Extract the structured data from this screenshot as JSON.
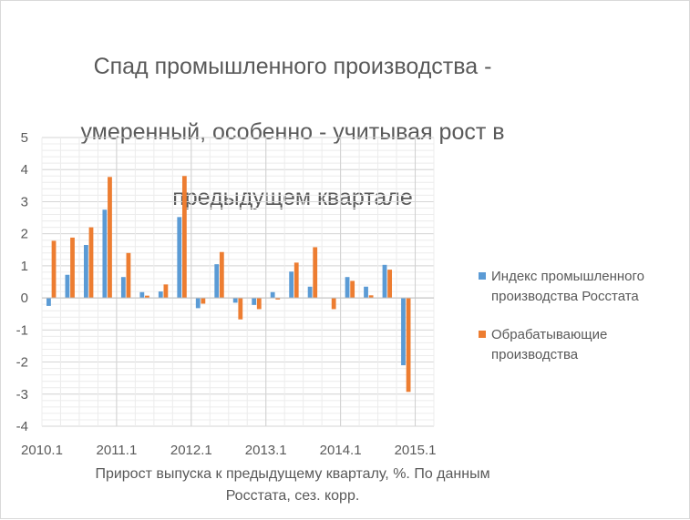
{
  "chart_data": {
    "type": "bar",
    "title_lines": [
      "Спад промышленного производства -",
      "умеренный, особенно - учитывая рост в",
      "предыдущем квартале"
    ],
    "xlabel_lines": [
      "Прирост выпуска к предыдущему кварталу, %. По данным",
      "Росстата, сез. корр."
    ],
    "ylabel": "",
    "ylim": [
      -4,
      5
    ],
    "yticks": [
      5,
      4,
      3,
      2,
      1,
      0,
      -1,
      -2,
      -3,
      -4
    ],
    "categories": [
      "2010.1",
      "2010.2",
      "2010.3",
      "2010.4",
      "2011.1",
      "2011.2",
      "2011.3",
      "2011.4",
      "2012.1",
      "2012.2",
      "2012.3",
      "2012.4",
      "2013.1",
      "2013.2",
      "2013.3",
      "2013.4",
      "2014.1",
      "2014.2",
      "2014.3",
      "2014.4",
      "2015.1"
    ],
    "xtick_labels": [
      "2010.1",
      "2011.1",
      "2012.1",
      "2013.1",
      "2014.1",
      "2015.1"
    ],
    "series": [
      {
        "name": "Индекс промышленного производства Росстата",
        "color": "#5b9bd5",
        "values": [
          -0.25,
          0.72,
          1.65,
          2.75,
          0.65,
          0.18,
          0.2,
          2.52,
          -0.32,
          1.05,
          -0.15,
          -0.22,
          0.18,
          0.82,
          0.35,
          0.0,
          0.65,
          0.35,
          1.03,
          -2.1,
          0.0
        ]
      },
      {
        "name": "Обрабатывающие производства",
        "color": "#ed7d31",
        "values": [
          1.78,
          1.88,
          2.2,
          3.77,
          1.4,
          0.07,
          0.42,
          3.8,
          -0.18,
          1.43,
          -0.67,
          -0.35,
          -0.05,
          1.1,
          1.58,
          -0.35,
          0.53,
          0.08,
          0.88,
          -2.93,
          0.0
        ]
      }
    ],
    "grid": true,
    "legend_position": "right"
  }
}
